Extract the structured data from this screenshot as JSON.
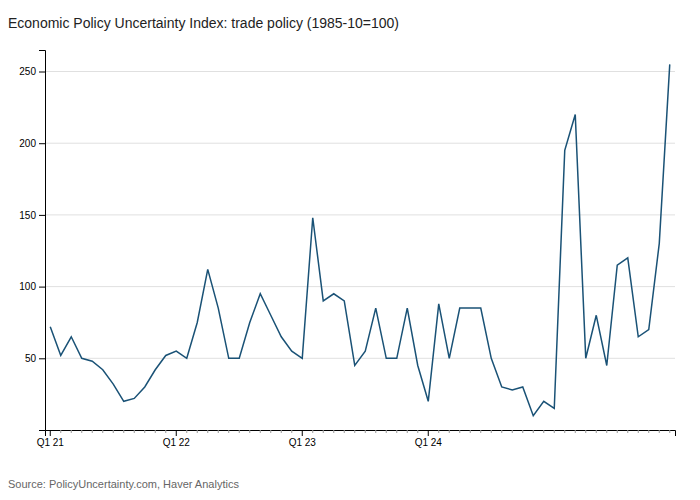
{
  "chart_data": {
    "type": "line",
    "title": "Economic Policy Uncertainty Index: trade policy (1985-10=100)",
    "annotations": [
      "Source: PolicyUncertainty.com, Haver Analytics"
    ],
    "color": "#1a5276",
    "categories": [
      "Q1 21",
      null,
      null,
      null,
      null,
      null,
      null,
      null,
      null,
      null,
      null,
      null,
      "Q1 22",
      null,
      null,
      null,
      null,
      null,
      null,
      null,
      null,
      null,
      null,
      null,
      "Q1 23",
      null,
      null,
      null,
      null,
      null,
      null,
      null,
      null,
      null,
      null,
      null,
      "Q1 24",
      null,
      null,
      null,
      null,
      null,
      null,
      null,
      null,
      null,
      null,
      null,
      null,
      null,
      null,
      null,
      null,
      null,
      null,
      null,
      null,
      null,
      null,
      null
    ],
    "values": [
      72,
      52,
      65,
      50,
      48,
      42,
      32,
      20,
      22,
      30,
      42,
      52,
      55,
      50,
      75,
      112,
      85,
      50,
      50,
      75,
      95,
      80,
      65,
      55,
      50,
      148,
      90,
      95,
      90,
      45,
      55,
      85,
      50,
      50,
      85,
      45,
      20,
      88,
      50,
      85,
      85,
      85,
      50,
      30,
      28,
      30,
      10,
      20,
      15,
      195,
      220,
      50,
      80,
      45,
      115,
      120,
      65,
      70,
      130,
      255
    ],
    "ylim": [
      0,
      265
    ],
    "yticks": [
      50,
      100,
      150,
      200,
      250
    ],
    "grid": true
  }
}
